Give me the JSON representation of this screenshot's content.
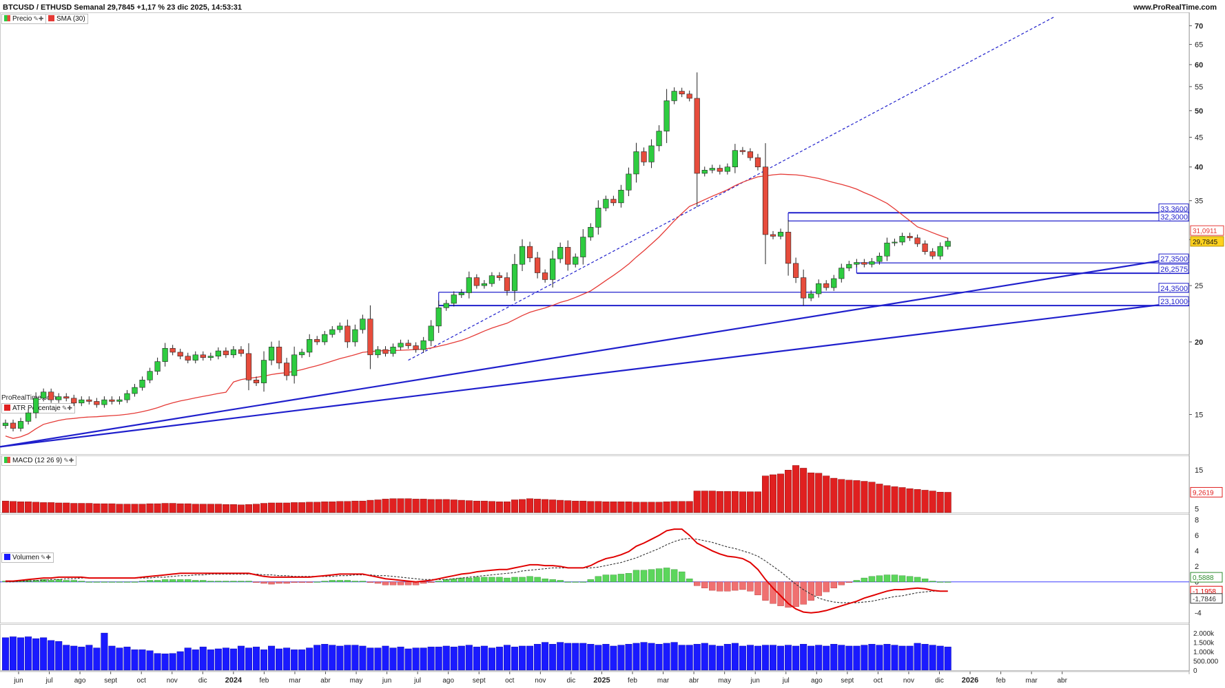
{
  "header": {
    "title": "BTCUSD / ETHUSD Semanal 29,7845 +1,17 % 23 dic 2025, 14:53:31",
    "site": "www.ProRealTime.com",
    "watermark": "ProRealTime.com"
  },
  "legend": {
    "price_label": "Precio",
    "sma_label": "SMA (30)",
    "atr_label": "ATR Porcentaje",
    "macd_label": "MACD (12 26 9)",
    "volume_label": "Volumen"
  },
  "colors": {
    "up": "#2ecc40",
    "down": "#e74c3c",
    "sma": "#e53935",
    "trend": "#1f1fcc",
    "atr": "#e02020",
    "volume": "#1a1aff",
    "macd": "#e00000",
    "signal": "#333333",
    "price_badge": "#ffd21e"
  },
  "x_axis_labels": [
    "jun",
    "jul",
    "ago",
    "sept",
    "oct",
    "nov",
    "dic",
    "2024",
    "feb",
    "mar",
    "abr",
    "may",
    "jun",
    "jul",
    "ago",
    "sept",
    "oct",
    "nov",
    "dic",
    "2025",
    "feb",
    "mar",
    "abr",
    "may",
    "jun",
    "jul",
    "ago",
    "sept",
    "oct",
    "nov",
    "dic",
    "2026",
    "feb",
    "mar",
    "abr"
  ],
  "chart_data": [
    {
      "type": "candlestick",
      "scale": "log",
      "y_ticks": [
        "70",
        "65",
        "60",
        "55",
        "50",
        "45",
        "40",
        "35",
        "30",
        "25",
        "20",
        "15"
      ],
      "ylim": [
        13,
        73
      ],
      "closes": [
        14.5,
        14.2,
        14.6,
        15.1,
        16.0,
        16.4,
        15.9,
        16.1,
        16.0,
        15.7,
        15.9,
        15.8,
        15.6,
        15.9,
        15.8,
        15.9,
        16.3,
        16.7,
        17.2,
        17.8,
        18.5,
        19.5,
        19.2,
        18.9,
        18.6,
        19.0,
        18.8,
        18.9,
        19.3,
        19.0,
        19.4,
        19.1,
        17.2,
        17.0,
        18.6,
        19.6,
        18.4,
        17.5,
        19.0,
        19.2,
        20.2,
        20.0,
        20.6,
        21.0,
        21.3,
        20.0,
        21.0,
        21.9,
        19.0,
        19.4,
        19.1,
        19.6,
        19.9,
        19.7,
        19.4,
        20.1,
        21.3,
        22.9,
        23.3,
        24.1,
        24.3,
        25.8,
        25.0,
        25.2,
        26.0,
        25.8,
        24.5,
        27.2,
        29.2,
        27.9,
        26.3,
        25.6,
        27.8,
        29.1,
        27.2,
        28.0,
        30.3,
        31.5,
        34.0,
        35.2,
        34.7,
        36.5,
        38.9,
        42.5,
        40.8,
        43.5,
        46.1,
        52.0,
        54.0,
        53.4,
        52.5,
        39.0,
        39.5,
        39.8,
        39.3,
        40.0,
        42.7,
        42.5,
        41.5,
        40.0,
        30.6,
        30.4,
        30.9,
        27.3,
        25.8,
        23.8,
        24.2,
        25.2,
        24.8,
        25.7,
        26.8,
        27.2,
        27.4,
        27.2,
        27.5,
        28.1,
        29.6,
        29.7,
        30.4,
        30.2,
        29.5,
        28.6,
        28.1,
        29.2,
        29.8
      ],
      "sma_period": 30,
      "levels": [
        {
          "label": "33,3600",
          "value": 33.36
        },
        {
          "label": "32,3000",
          "value": 32.3
        },
        {
          "label": "27,3500",
          "value": 27.35
        },
        {
          "label": "26,2575",
          "value": 26.2575
        },
        {
          "label": "24,3500",
          "value": 24.35
        },
        {
          "label": "23,1000",
          "value": 23.1
        }
      ],
      "price_tags": [
        {
          "label": "31,0911",
          "value": 31.0911,
          "kind": "sma"
        },
        {
          "label": "29,7845",
          "value": 29.7845,
          "kind": "price"
        }
      ]
    },
    {
      "type": "bar",
      "name": "ATR Porcentaje",
      "y_ticks": [
        "15",
        "10",
        "5"
      ],
      "ylim": [
        4,
        17
      ],
      "last_label": "9,2619",
      "values": [
        7.0,
        6.9,
        6.8,
        6.8,
        6.7,
        6.6,
        6.6,
        6.5,
        6.5,
        6.4,
        6.4,
        6.4,
        6.3,
        6.3,
        6.3,
        6.2,
        6.2,
        6.2,
        6.2,
        6.3,
        6.3,
        6.4,
        6.4,
        6.3,
        6.3,
        6.2,
        6.2,
        6.2,
        6.2,
        6.1,
        6.1,
        6.0,
        6.1,
        6.2,
        6.4,
        6.5,
        6.5,
        6.5,
        6.6,
        6.6,
        6.7,
        6.7,
        6.8,
        6.8,
        6.9,
        6.9,
        7.0,
        7.0,
        7.2,
        7.3,
        7.5,
        7.6,
        7.6,
        7.6,
        7.5,
        7.5,
        7.4,
        7.4,
        7.4,
        7.3,
        7.2,
        7.1,
        7.0,
        7.0,
        6.9,
        6.8,
        6.8,
        7.3,
        7.4,
        7.6,
        7.5,
        7.4,
        7.3,
        7.2,
        7.1,
        7.0,
        7.0,
        6.9,
        6.9,
        6.8,
        6.8,
        6.8,
        6.8,
        6.7,
        6.7,
        6.7,
        6.7,
        6.8,
        6.9,
        6.9,
        6.9,
        9.6,
        9.6,
        9.6,
        9.5,
        9.5,
        9.5,
        9.4,
        9.4,
        9.4,
        13.5,
        13.8,
        14.0,
        15.0,
        16.2,
        15.5,
        14.3,
        14.2,
        13.5,
        12.9,
        12.6,
        12.4,
        12.3,
        12.1,
        11.9,
        11.4,
        11.0,
        10.7,
        10.5,
        10.2,
        10.0,
        9.8,
        9.6,
        9.3,
        9.26
      ]
    },
    {
      "type": "line",
      "name": "MACD (12 26 9)",
      "y_ticks": [
        "8",
        "6",
        "4",
        "2",
        "0",
        "-2",
        "-4"
      ],
      "ylim": [
        -5,
        8.5
      ],
      "labels": [
        "0,5888",
        "-1,1958",
        "-1,7846"
      ],
      "macd": [
        0.1,
        0.1,
        0.2,
        0.3,
        0.4,
        0.5,
        0.5,
        0.6,
        0.6,
        0.6,
        0.6,
        0.5,
        0.5,
        0.5,
        0.5,
        0.5,
        0.5,
        0.5,
        0.6,
        0.7,
        0.8,
        0.9,
        1.0,
        1.1,
        1.1,
        1.1,
        1.1,
        1.1,
        1.1,
        1.1,
        1.1,
        1.1,
        1.1,
        0.9,
        0.7,
        0.6,
        0.6,
        0.6,
        0.6,
        0.6,
        0.6,
        0.7,
        0.8,
        0.9,
        1.0,
        1.0,
        1.0,
        1.0,
        0.8,
        0.6,
        0.4,
        0.3,
        0.2,
        0.1,
        0.0,
        0.1,
        0.2,
        0.4,
        0.6,
        0.8,
        1.0,
        1.1,
        1.3,
        1.4,
        1.5,
        1.6,
        1.6,
        1.8,
        2.0,
        2.2,
        2.2,
        2.1,
        2.1,
        2.0,
        1.8,
        1.8,
        1.8,
        2.1,
        2.6,
        3.0,
        3.2,
        3.5,
        3.9,
        4.6,
        5.0,
        5.5,
        6.0,
        6.6,
        6.8,
        6.8,
        6.0,
        5.0,
        4.5,
        4.0,
        3.6,
        3.3,
        3.2,
        3.0,
        2.5,
        1.6,
        0.3,
        -0.8,
        -1.8,
        -2.8,
        -3.5,
        -3.9,
        -4.0,
        -3.9,
        -3.7,
        -3.4,
        -3.1,
        -2.8,
        -2.5,
        -2.1,
        -1.8,
        -1.5,
        -1.2,
        -1.0,
        -1.0,
        -0.9,
        -0.8,
        -0.9,
        -1.1,
        -1.2,
        -1.2
      ],
      "signal": [
        0.0,
        0.0,
        0.1,
        0.1,
        0.2,
        0.2,
        0.3,
        0.3,
        0.4,
        0.4,
        0.5,
        0.5,
        0.5,
        0.5,
        0.5,
        0.5,
        0.5,
        0.5,
        0.5,
        0.5,
        0.6,
        0.6,
        0.7,
        0.8,
        0.8,
        0.9,
        0.9,
        1.0,
        1.0,
        1.0,
        1.0,
        1.0,
        1.0,
        1.0,
        0.9,
        0.9,
        0.8,
        0.8,
        0.7,
        0.7,
        0.7,
        0.7,
        0.7,
        0.7,
        0.8,
        0.8,
        0.9,
        0.9,
        0.9,
        0.8,
        0.8,
        0.7,
        0.6,
        0.5,
        0.4,
        0.3,
        0.3,
        0.3,
        0.3,
        0.4,
        0.5,
        0.6,
        0.7,
        0.8,
        0.9,
        1.0,
        1.1,
        1.2,
        1.4,
        1.5,
        1.6,
        1.7,
        1.8,
        1.8,
        1.8,
        1.8,
        1.8,
        1.8,
        1.9,
        2.1,
        2.3,
        2.5,
        2.8,
        3.1,
        3.5,
        3.9,
        4.3,
        4.8,
        5.2,
        5.5,
        5.6,
        5.5,
        5.3,
        5.1,
        4.8,
        4.5,
        4.3,
        4.0,
        3.7,
        3.3,
        2.7,
        2.0,
        1.3,
        0.5,
        -0.3,
        -1.0,
        -1.6,
        -2.1,
        -2.4,
        -2.6,
        -2.7,
        -2.7,
        -2.7,
        -2.6,
        -2.5,
        -2.3,
        -2.1,
        -1.9,
        -1.8,
        -1.6,
        -1.4,
        -1.3,
        -1.2,
        -1.2,
        -1.2
      ]
    },
    {
      "type": "bar",
      "name": "Volumen",
      "y_ticks": [
        "2.000k",
        "1.500k",
        "1.000k",
        "500.000",
        "0"
      ],
      "ylim": [
        0,
        2300000
      ],
      "values": [
        1750000,
        1800000,
        1750000,
        1800000,
        1700000,
        1750000,
        1600000,
        1550000,
        1350000,
        1300000,
        1250000,
        1350000,
        1200000,
        2000000,
        1300000,
        1200000,
        1250000,
        1100000,
        1100000,
        1050000,
        900000,
        880000,
        900000,
        1000000,
        1200000,
        1100000,
        1250000,
        1100000,
        1150000,
        1200000,
        1150000,
        1300000,
        1200000,
        1250000,
        1100000,
        1300000,
        1150000,
        1200000,
        1100000,
        1100000,
        1200000,
        1350000,
        1400000,
        1350000,
        1300000,
        1350000,
        1350000,
        1300000,
        1200000,
        1200000,
        1300000,
        1200000,
        1250000,
        1150000,
        1200000,
        1200000,
        1250000,
        1250000,
        1300000,
        1250000,
        1300000,
        1350000,
        1250000,
        1300000,
        1200000,
        1250000,
        1350000,
        1250000,
        1300000,
        1300000,
        1400000,
        1500000,
        1400000,
        1500000,
        1450000,
        1450000,
        1450000,
        1400000,
        1350000,
        1400000,
        1300000,
        1350000,
        1400000,
        1450000,
        1500000,
        1450000,
        1400000,
        1450000,
        1500000,
        1350000,
        1350000,
        1400000,
        1450000,
        1350000,
        1300000,
        1400000,
        1450000,
        1300000,
        1350000,
        1300000,
        1350000,
        1350000,
        1300000,
        1350000,
        1300000,
        1400000,
        1300000,
        1350000,
        1300000,
        1400000,
        1350000,
        1300000,
        1300000,
        1350000,
        1400000,
        1350000,
        1400000,
        1350000,
        1300000,
        1300000,
        1450000,
        1400000,
        1350000,
        1300000,
        1250000
      ]
    }
  ]
}
